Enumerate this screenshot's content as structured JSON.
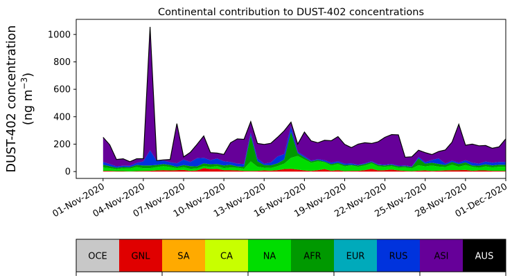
{
  "chart_data": {
    "type": "area",
    "stacked": true,
    "title": "Continental contribution to DUST-402 concentrations",
    "ylabel_line1": "DUST-402 concentration",
    "ylabel_unit_prefix": "(ng m",
    "ylabel_unit_sup": "−3",
    "ylabel_unit_suffix": ")",
    "xlim": [
      "2020-10-30",
      "2020-12-01"
    ],
    "ylim": [
      -50,
      1110
    ],
    "yticks": [
      0,
      200,
      400,
      600,
      800,
      1000
    ],
    "xticks": [
      {
        "date": "2020-11-01",
        "label": "01-Nov-2020"
      },
      {
        "date": "2020-11-04",
        "label": "04-Nov-2020"
      },
      {
        "date": "2020-11-07",
        "label": "07-Nov-2020"
      },
      {
        "date": "2020-11-10",
        "label": "10-Nov-2020"
      },
      {
        "date": "2020-11-13",
        "label": "13-Nov-2020"
      },
      {
        "date": "2020-11-16",
        "label": "16-Nov-2020"
      },
      {
        "date": "2020-11-19",
        "label": "19-Nov-2020"
      },
      {
        "date": "2020-11-22",
        "label": "22-Nov-2020"
      },
      {
        "date": "2020-11-25",
        "label": "25-Nov-2020"
      },
      {
        "date": "2020-11-28",
        "label": "28-Nov-2020"
      },
      {
        "date": "2020-12-01",
        "label": "01-Dec-2020"
      }
    ],
    "x": [
      "2020-11-01 00:00",
      "2020-11-01 12:00",
      "2020-11-02 00:00",
      "2020-11-02 12:00",
      "2020-11-03 00:00",
      "2020-11-03 12:00",
      "2020-11-04 00:00",
      "2020-11-04 12:00",
      "2020-11-05 00:00",
      "2020-11-05 12:00",
      "2020-11-06 00:00",
      "2020-11-06 12:00",
      "2020-11-07 00:00",
      "2020-11-07 12:00",
      "2020-11-08 00:00",
      "2020-11-08 12:00",
      "2020-11-09 00:00",
      "2020-11-09 12:00",
      "2020-11-10 00:00",
      "2020-11-10 12:00",
      "2020-11-11 00:00",
      "2020-11-11 12:00",
      "2020-11-12 00:00",
      "2020-11-12 12:00",
      "2020-11-13 00:00",
      "2020-11-13 12:00",
      "2020-11-14 00:00",
      "2020-11-14 12:00",
      "2020-11-15 00:00",
      "2020-11-15 12:00",
      "2020-11-16 00:00",
      "2020-11-16 12:00",
      "2020-11-17 00:00",
      "2020-11-17 12:00",
      "2020-11-18 00:00",
      "2020-11-18 12:00",
      "2020-11-19 00:00",
      "2020-11-19 12:00",
      "2020-11-20 00:00",
      "2020-11-20 12:00",
      "2020-11-21 00:00",
      "2020-11-21 12:00",
      "2020-11-22 00:00",
      "2020-11-22 12:00",
      "2020-11-23 00:00",
      "2020-11-23 12:00",
      "2020-11-24 00:00",
      "2020-11-24 12:00",
      "2020-11-25 00:00",
      "2020-11-25 12:00",
      "2020-11-26 00:00",
      "2020-11-26 12:00",
      "2020-11-27 00:00",
      "2020-11-27 12:00",
      "2020-11-28 00:00",
      "2020-11-28 12:00",
      "2020-11-29 00:00",
      "2020-11-29 12:00",
      "2020-11-30 00:00",
      "2020-11-30 12:00",
      "2020-12-01 00:00"
    ],
    "series": [
      {
        "name": "OCE",
        "color": "#c8c8c8",
        "values": [
          0,
          0,
          0,
          0,
          0,
          0,
          0,
          0,
          0,
          0,
          0,
          0,
          0,
          0,
          0,
          0,
          0,
          0,
          0,
          0,
          0,
          0,
          0,
          0,
          0,
          0,
          0,
          0,
          0,
          0,
          0,
          0,
          0,
          0,
          0,
          0,
          0,
          0,
          0,
          0,
          0,
          0,
          0,
          0,
          0,
          0,
          0,
          0,
          0,
          0,
          0,
          0,
          0,
          0,
          0,
          0,
          0,
          0,
          0,
          0,
          0
        ]
      },
      {
        "name": "GNL",
        "color": "#e00000",
        "values": [
          5,
          5,
          3,
          3,
          2,
          3,
          4,
          5,
          8,
          10,
          8,
          10,
          12,
          5,
          8,
          25,
          18,
          20,
          10,
          10,
          8,
          5,
          4,
          5,
          8,
          6,
          10,
          18,
          20,
          14,
          8,
          4,
          10,
          18,
          5,
          10,
          3,
          5,
          5,
          10,
          20,
          8,
          10,
          15,
          8,
          5,
          3,
          6,
          8,
          4,
          6,
          8,
          10,
          10,
          12,
          5,
          8,
          8,
          5,
          5,
          4
        ]
      },
      {
        "name": "SA",
        "color": "#ffaa00",
        "values": [
          0,
          0,
          0,
          0,
          0,
          0,
          0,
          0,
          0,
          0,
          0,
          0,
          0,
          0,
          0,
          0,
          0,
          0,
          0,
          0,
          0,
          0,
          0,
          0,
          0,
          0,
          0,
          0,
          0,
          0,
          0,
          0,
          0,
          0,
          0,
          0,
          0,
          0,
          0,
          0,
          0,
          0,
          0,
          0,
          0,
          0,
          0,
          0,
          0,
          0,
          0,
          0,
          0,
          0,
          0,
          0,
          0,
          0,
          0,
          0,
          0
        ]
      },
      {
        "name": "CA",
        "color": "#c8ff00",
        "values": [
          0,
          0,
          0,
          0,
          0,
          0,
          0,
          0,
          0,
          0,
          0,
          0,
          0,
          0,
          0,
          0,
          0,
          0,
          0,
          0,
          0,
          0,
          0,
          0,
          0,
          0,
          0,
          0,
          0,
          0,
          0,
          0,
          0,
          0,
          0,
          0,
          0,
          0,
          0,
          0,
          0,
          0,
          0,
          0,
          0,
          0,
          0,
          0,
          0,
          0,
          0,
          0,
          0,
          0,
          0,
          0,
          0,
          0,
          0,
          0,
          0
        ]
      },
      {
        "name": "NA",
        "color": "#00dd00",
        "values": [
          25,
          20,
          15,
          20,
          20,
          30,
          20,
          20,
          25,
          30,
          25,
          15,
          20,
          15,
          15,
          15,
          15,
          20,
          15,
          20,
          20,
          15,
          70,
          30,
          20,
          20,
          30,
          40,
          80,
          100,
          80,
          60,
          65,
          50,
          40,
          45,
          35,
          40,
          30,
          35,
          40,
          30,
          25,
          25,
          20,
          25,
          20,
          40,
          30,
          40,
          30,
          25,
          40,
          25,
          35,
          30,
          20,
          30,
          25,
          30,
          30
        ]
      },
      {
        "name": "AFR",
        "color": "#009900",
        "values": [
          20,
          15,
          10,
          10,
          10,
          15,
          20,
          20,
          15,
          15,
          15,
          10,
          15,
          20,
          15,
          20,
          20,
          15,
          20,
          20,
          10,
          15,
          190,
          40,
          20,
          20,
          20,
          30,
          190,
          20,
          15,
          10,
          10,
          5,
          10,
          10,
          10,
          5,
          10,
          10,
          10,
          10,
          10,
          10,
          10,
          10,
          10,
          50,
          20,
          20,
          20,
          15,
          20,
          20,
          20,
          10,
          15,
          15,
          15,
          15,
          15
        ]
      },
      {
        "name": "EUR",
        "color": "#00aabb",
        "values": [
          0,
          0,
          0,
          0,
          0,
          0,
          0,
          0,
          0,
          0,
          0,
          0,
          0,
          0,
          0,
          0,
          0,
          0,
          0,
          0,
          0,
          0,
          0,
          0,
          0,
          0,
          0,
          0,
          0,
          0,
          0,
          0,
          0,
          0,
          0,
          0,
          0,
          0,
          0,
          0,
          0,
          0,
          0,
          0,
          0,
          0,
          0,
          0,
          0,
          0,
          0,
          0,
          0,
          0,
          0,
          0,
          0,
          0,
          0,
          0,
          0
        ]
      },
      {
        "name": "RUS",
        "color": "#0033dd",
        "values": [
          20,
          15,
          10,
          10,
          10,
          15,
          30,
          110,
          30,
          25,
          20,
          25,
          40,
          30,
          60,
          40,
          30,
          40,
          30,
          20,
          20,
          20,
          20,
          20,
          10,
          20,
          50,
          40,
          40,
          10,
          10,
          5,
          5,
          10,
          10,
          10,
          10,
          10,
          5,
          5,
          5,
          5,
          5,
          5,
          5,
          5,
          5,
          10,
          10,
          20,
          40,
          10,
          10,
          10,
          15,
          20,
          15,
          20,
          20,
          20,
          20
        ]
      },
      {
        "name": "ASI",
        "color": "#660099",
        "values": [
          180,
          140,
          50,
          50,
          30,
          30,
          20,
          900,
          2,
          5,
          20,
          290,
          20,
          70,
          100,
          160,
          55,
          40,
          50,
          140,
          180,
          180,
          80,
          110,
          140,
          140,
          140,
          170,
          30,
          56,
          175,
          145,
          120,
          145,
          160,
          180,
          140,
          115,
          150,
          150,
          130,
          165,
          200,
          215,
          225,
          60,
          70,
          50,
          70,
          40,
          50,
          100,
          135,
          280,
          110,
          135,
          130,
          117,
          105,
          110,
          170
        ]
      },
      {
        "name": "AUS",
        "color": "#000000",
        "values": [
          0,
          0,
          0,
          0,
          0,
          0,
          0,
          0,
          0,
          0,
          0,
          0,
          0,
          0,
          0,
          0,
          0,
          0,
          0,
          0,
          0,
          0,
          0,
          0,
          0,
          0,
          0,
          0,
          0,
          0,
          0,
          0,
          0,
          0,
          0,
          0,
          0,
          0,
          0,
          0,
          0,
          0,
          0,
          0,
          0,
          0,
          0,
          0,
          0,
          0,
          0,
          0,
          0,
          0,
          0,
          0,
          0,
          0,
          0,
          0,
          0
        ]
      }
    ],
    "legend_placement": "bottom-colorbar",
    "total_line_color": "#000000"
  }
}
